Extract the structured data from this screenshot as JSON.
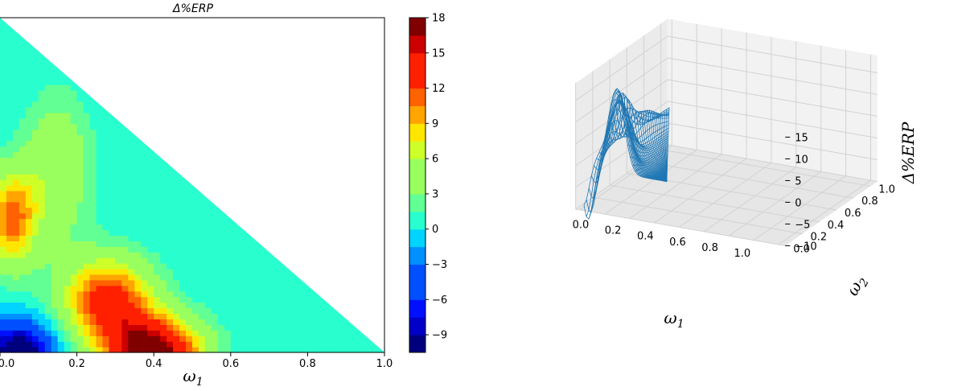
{
  "chart_data": [
    {
      "type": "contour",
      "title": "Δ%ERP",
      "xlabel": "ω",
      "xlabel_sub": "1",
      "xlim": [
        0.0,
        1.0
      ],
      "x_ticks": [
        "0.0",
        "0.2",
        "0.4",
        "0.6",
        "0.8",
        "1.0"
      ],
      "levels": [
        -10.5,
        -9,
        -7.5,
        -6,
        -4.5,
        -3,
        -1.5,
        0,
        1.5,
        3,
        4.5,
        6,
        7.5,
        9,
        10.5,
        12,
        13.5,
        15,
        16.5,
        18
      ],
      "colorbar_ticks": [
        "18",
        "15",
        "12",
        "9",
        "6",
        "3",
        "0",
        "−3",
        "−6",
        "−9"
      ],
      "colorbar_tick_values": [
        18,
        15,
        12,
        9,
        6,
        3,
        0,
        -3,
        -6,
        -9
      ],
      "colormap": [
        "#00007f",
        "#0000c8",
        "#0010ff",
        "#0050ff",
        "#0090ff",
        "#00d4ff",
        "#29ffce",
        "#62ff94",
        "#98ff5e",
        "#ceff29",
        "#ffe600",
        "#ffa400",
        "#ff6200",
        "#ff2000",
        "#cc0000",
        "#800000"
      ]
    },
    {
      "type": "surface3d",
      "xlabel": "ω",
      "xlabel_sub": "1",
      "ylabel": "ω",
      "ylabel_sub": "2",
      "zlabel": "Δ%ERP",
      "x_ticks": [
        "0.0",
        "0.2",
        "0.4",
        "0.6",
        "0.8",
        "1.0"
      ],
      "y_ticks": [
        "0.0",
        "0.2",
        "0.4",
        "0.6",
        "0.8",
        "1.0"
      ],
      "z_ticks": [
        "15",
        "10",
        "5",
        "0",
        "−5",
        "−10"
      ],
      "z_tick_values": [
        15,
        10,
        5,
        0,
        -5,
        -10
      ],
      "zlim": [
        -10,
        18
      ],
      "color": "#1f77b4"
    }
  ]
}
